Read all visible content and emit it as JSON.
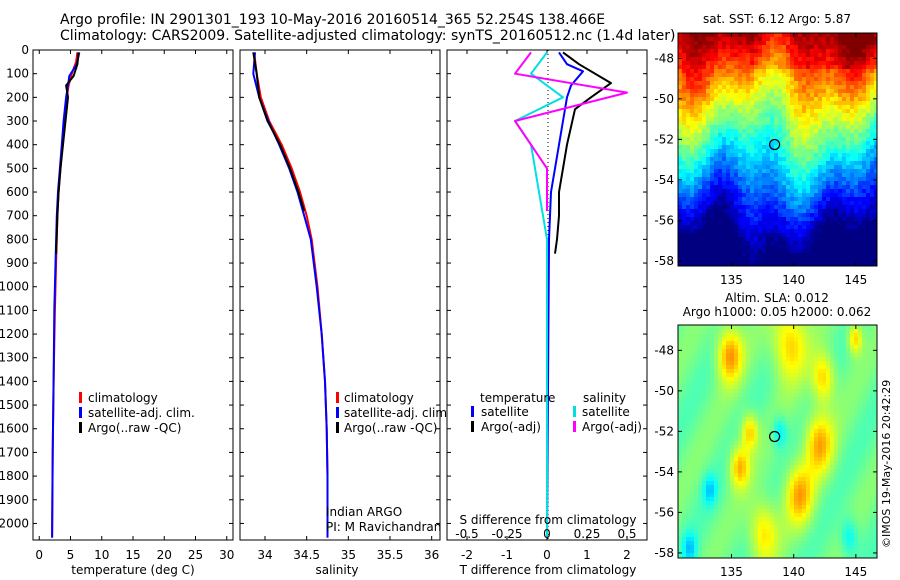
{
  "header": {
    "line1": "Argo profile: IN 2901301_193 10-May-2016 20160514_365 52.254S 138.466E",
    "line2": "Climatology: CARS2009. Satellite-adjusted climatology: synTS_20160512.nc (1.4d later)"
  },
  "colors": {
    "climatology": "#ff0000",
    "satellite": "#0000ff",
    "argo": "#000000",
    "argo_salt_adj": "#ff00ff",
    "satellite_salt": "#00e0e0"
  },
  "chart_data": [
    {
      "type": "line",
      "panel": "temperature",
      "xlabel": "temperature (deg C)",
      "ylabel": "",
      "xlim": [
        -1,
        31
      ],
      "ylim": [
        2070,
        0
      ],
      "xticks": [
        0,
        5,
        10,
        15,
        20,
        25,
        30
      ],
      "yticks": [
        0,
        100,
        200,
        300,
        400,
        500,
        600,
        700,
        800,
        900,
        1000,
        1100,
        1200,
        1300,
        1400,
        1500,
        1600,
        1700,
        1800,
        1900,
        2000
      ],
      "legend": [
        "climatology",
        "satellite-adj. clim.",
        "Argo(..raw -QC)"
      ],
      "series": [
        {
          "name": "climatology",
          "color": "#ff0000",
          "x": [
            6.1,
            5.9,
            5.2,
            4.7,
            4.4,
            4.0,
            3.7,
            3.4,
            3.1,
            2.9,
            2.7,
            2.5,
            2.3,
            2.15,
            2.05
          ],
          "y": [
            10,
            50,
            100,
            150,
            200,
            300,
            400,
            500,
            600,
            700,
            900,
            1100,
            1400,
            1700,
            2060
          ]
        },
        {
          "name": "satellite-adj. clim.",
          "color": "#0000ff",
          "x": [
            6.4,
            6.0,
            4.8,
            4.6,
            4.3,
            3.9,
            3.6,
            3.3,
            3.0,
            2.8,
            2.6,
            2.4,
            2.3,
            2.15,
            2.05
          ],
          "y": [
            10,
            60,
            110,
            150,
            200,
            300,
            400,
            500,
            600,
            700,
            900,
            1100,
            1400,
            1700,
            2060
          ]
        },
        {
          "name": "Argo(..raw -QC)",
          "color": "#000000",
          "x": [
            6.3,
            6.1,
            5.5,
            4.3,
            4.6,
            4.2,
            3.8,
            3.4,
            3.1,
            2.9,
            2.7
          ],
          "y": [
            10,
            60,
            110,
            150,
            200,
            300,
            400,
            500,
            600,
            700,
            860
          ]
        }
      ]
    },
    {
      "type": "line",
      "panel": "salinity",
      "xlabel": "salinity",
      "xlim": [
        33.7,
        36.1
      ],
      "ylim": [
        2070,
        0
      ],
      "xticks": [
        34,
        34.5,
        35,
        35.5,
        36
      ],
      "xtick_labels": [
        "34",
        "34.5",
        "35",
        "35.5",
        "36"
      ],
      "legend": [
        "climatology",
        "satellite-adj. clim.",
        "Argo(..raw -QC)"
      ],
      "annotation": [
        "Indian ARGO",
        "PI: M Ravichandran"
      ],
      "series": [
        {
          "name": "climatology",
          "color": "#ff0000",
          "x": [
            33.87,
            33.9,
            33.95,
            34.05,
            34.2,
            34.32,
            34.42,
            34.5,
            34.56,
            34.63,
            34.68,
            34.72,
            34.74,
            34.75,
            34.75
          ],
          "y": [
            10,
            100,
            200,
            300,
            400,
            500,
            600,
            700,
            800,
            1000,
            1200,
            1400,
            1600,
            1800,
            2060
          ]
        },
        {
          "name": "satellite-adj. clim.",
          "color": "#0000ff",
          "x": [
            33.88,
            33.86,
            33.93,
            34.04,
            34.17,
            34.29,
            34.39,
            34.47,
            34.55,
            34.62,
            34.68,
            34.72,
            34.74,
            34.75,
            34.75
          ],
          "y": [
            10,
            100,
            200,
            300,
            400,
            500,
            600,
            700,
            800,
            1000,
            1200,
            1400,
            1600,
            1800,
            2060
          ]
        },
        {
          "name": "Argo(..raw -QC)",
          "color": "#000000",
          "x": [
            33.86,
            33.9,
            33.93,
            34.03,
            34.18,
            34.3,
            34.4,
            34.47
          ],
          "y": [
            10,
            100,
            200,
            300,
            400,
            500,
            600,
            680
          ]
        }
      ]
    },
    {
      "type": "line",
      "panel": "difference",
      "xlabel": "T difference from climatology",
      "xlabel2": "S difference from climatology",
      "xlim": [
        -2.5,
        2.5
      ],
      "ylim": [
        2070,
        0
      ],
      "xticks": [
        -2,
        -1,
        0,
        1,
        2
      ],
      "xtick_labels": [
        "-2",
        "-1",
        "0",
        "1",
        "2"
      ],
      "xticks2_labels": [
        "-0.5",
        "-0.25",
        "0",
        "0.25",
        "0.5"
      ],
      "legend_temperature": {
        "title": "temperature",
        "items": [
          "satellite",
          "Argo(-adj)"
        ]
      },
      "legend_salinity": {
        "title": "salinity",
        "items": [
          "satellite",
          "Argo(-adj)"
        ]
      },
      "series": [
        {
          "name": "satellite",
          "group": "temperature",
          "color": "#0000ff",
          "x": [
            0.3,
            0.5,
            0.9,
            0.6,
            0.5,
            0.4,
            0.3,
            0.2,
            0.1,
            0.05,
            0.0
          ],
          "y": [
            10,
            60,
            90,
            150,
            200,
            300,
            400,
            500,
            600,
            800,
            2060
          ]
        },
        {
          "name": "Argo(-adj)",
          "group": "temperature",
          "color": "#000000",
          "x": [
            0.4,
            0.8,
            1.6,
            1.1,
            0.7,
            0.5,
            0.4,
            0.3,
            0.3,
            0.25,
            0.2
          ],
          "y": [
            10,
            60,
            140,
            200,
            250,
            400,
            500,
            600,
            700,
            800,
            860
          ]
        },
        {
          "name": "satellite",
          "group": "salinity",
          "color": "#00e0e0",
          "x": [
            0.0,
            -0.1,
            0.1,
            -0.2,
            -0.1,
            -0.05,
            0.0,
            0.0,
            0.0
          ],
          "y": [
            10,
            100,
            200,
            300,
            400,
            600,
            800,
            1200,
            2060
          ]
        },
        {
          "name": "Argo(-adj)",
          "group": "salinity",
          "color": "#ff00ff",
          "x": [
            -0.1,
            -0.2,
            0.5,
            -0.2,
            -0.1,
            0.0,
            0.0
          ],
          "y": [
            10,
            100,
            180,
            300,
            400,
            500,
            680
          ]
        }
      ]
    }
  ],
  "maps": [
    {
      "title": "sat. SST: 6.12 Argo: 5.87",
      "xticks": [
        135,
        140,
        145
      ],
      "yticks": [
        -48,
        -50,
        -52,
        -54,
        -56,
        -58
      ],
      "marker": {
        "lon": 138.466,
        "lat": -52.254
      }
    },
    {
      "title": "Altim. SLA: 0.012",
      "subtitle": "Argo h1000: 0.05 h2000: 0.062",
      "xticks": [
        135,
        140,
        145
      ],
      "yticks": [
        -48,
        -50,
        -52,
        -54,
        -56,
        -58
      ],
      "marker": {
        "lon": 138.466,
        "lat": -52.254
      }
    }
  ],
  "credit": "©IMOS 19-May-2016 20:42:29"
}
